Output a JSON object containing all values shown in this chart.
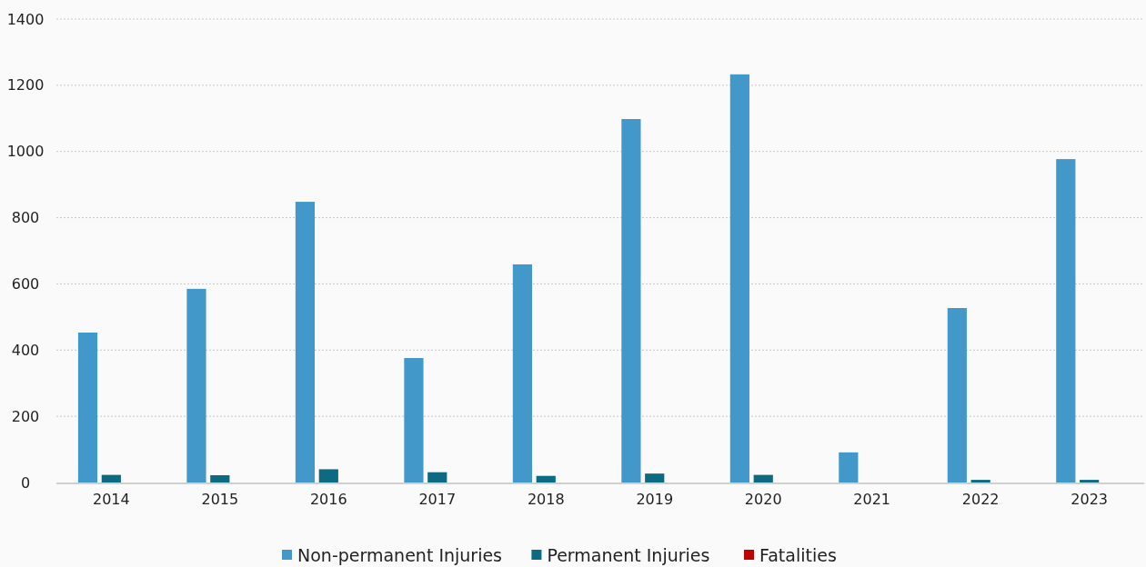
{
  "chart_data": {
    "type": "bar",
    "categories": [
      "2014",
      "2015",
      "2016",
      "2017",
      "2018",
      "2019",
      "2020",
      "2021",
      "2022",
      "2023"
    ],
    "series": [
      {
        "name": "Non-permanent Injuries",
        "color": "#4298c8",
        "values": [
          453,
          585,
          848,
          376,
          659,
          1098,
          1233,
          91,
          527,
          977
        ]
      },
      {
        "name": "Permanent Injuries",
        "color": "#0e6a80",
        "values": [
          23,
          22,
          40,
          31,
          20,
          27,
          23,
          0,
          8,
          8
        ]
      },
      {
        "name": "Fatalities",
        "color": "#c00000",
        "values": [
          0,
          0,
          0,
          0,
          0,
          0,
          0,
          0,
          0,
          0
        ]
      }
    ],
    "ylim": [
      0,
      1400
    ],
    "yticks": [
      0,
      200,
      400,
      600,
      800,
      1000,
      1200,
      1400
    ],
    "grid": "y",
    "legend": "bottom"
  }
}
